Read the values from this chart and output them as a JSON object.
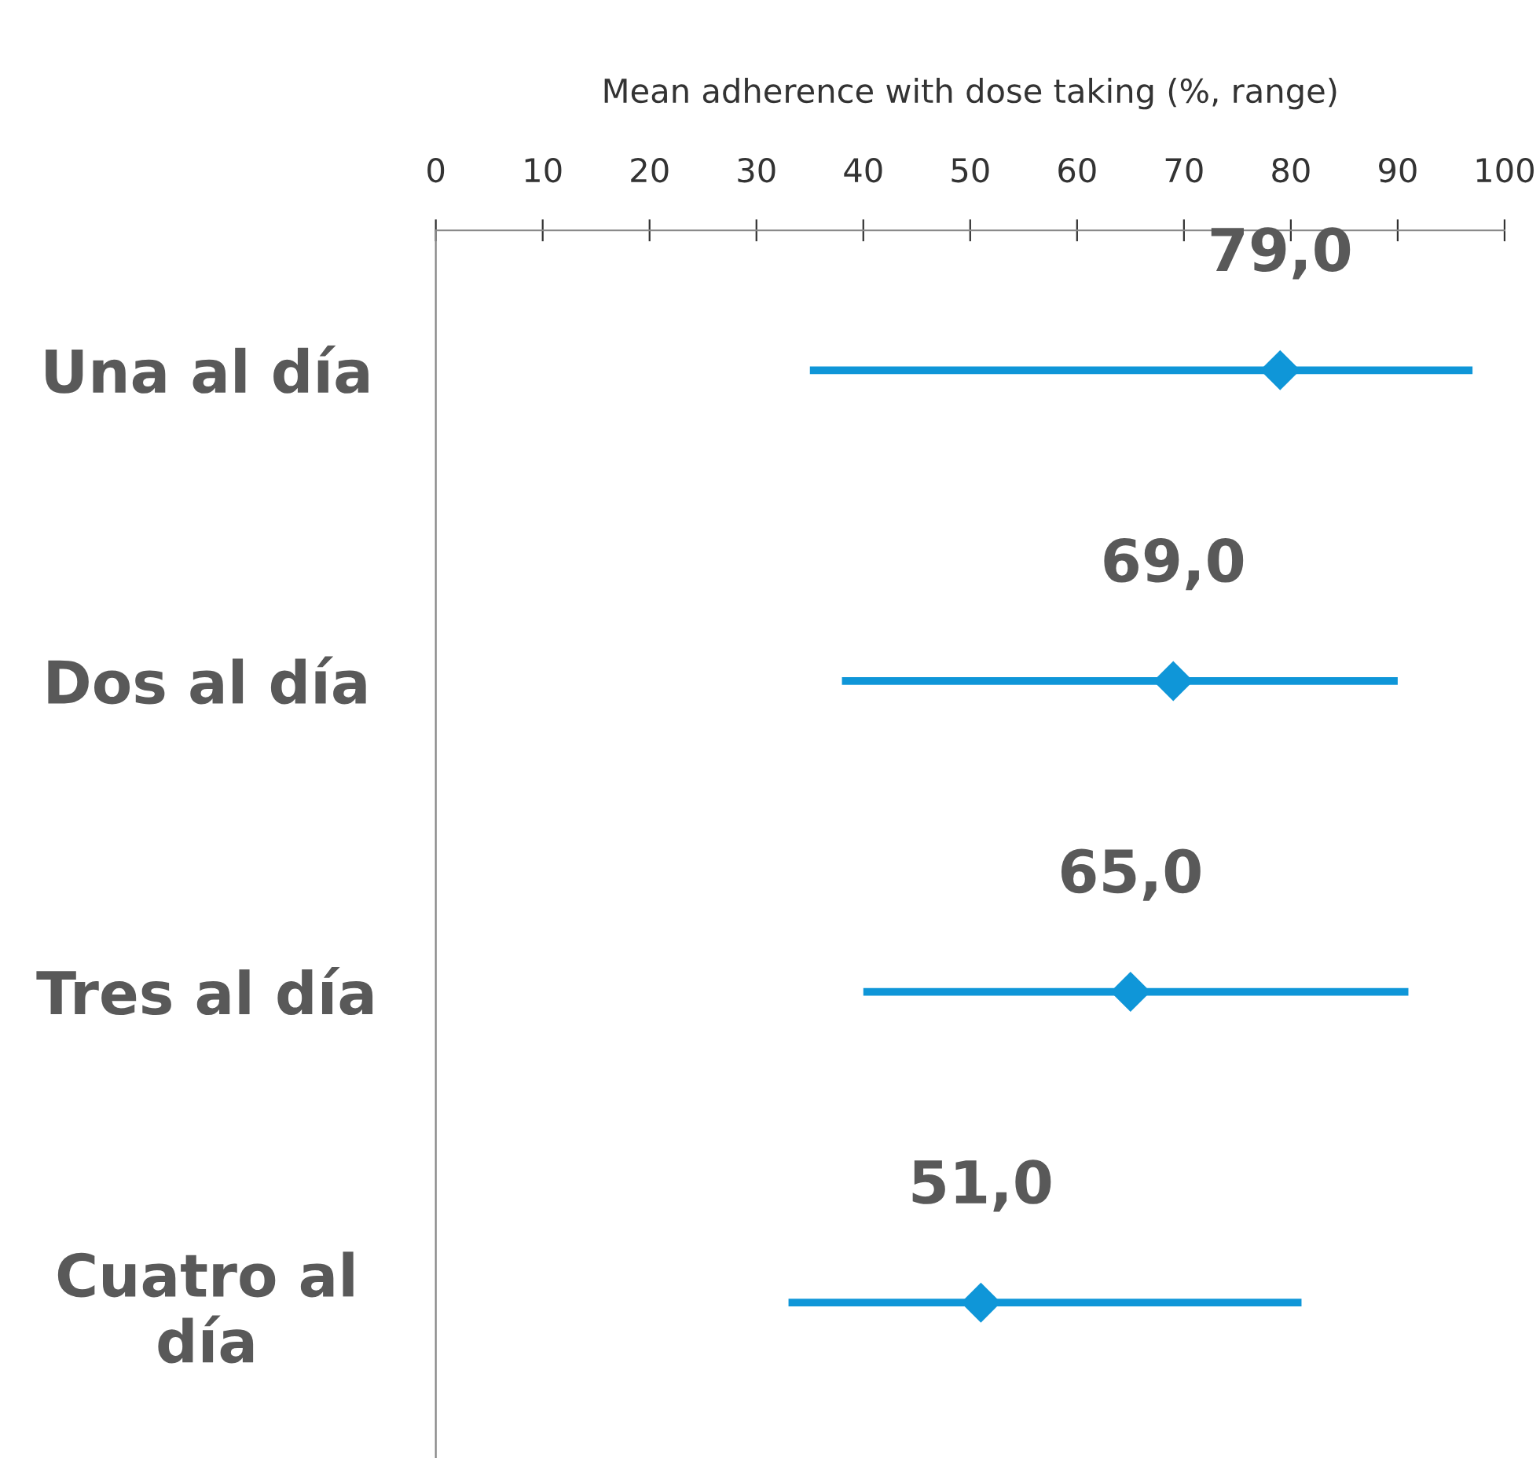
{
  "chart_data": {
    "type": "scatter",
    "orientation": "horizontal",
    "xlabel": "Mean adherence with dose taking (%, range)",
    "categories": [
      "Una al día",
      "Dos al día",
      "Tres al día",
      "Cuatro al día"
    ],
    "color": "#0f96d8",
    "values": [
      79,
      69,
      65,
      51
    ],
    "errors": [
      [
        35,
        97
      ],
      [
        38,
        90
      ],
      [
        40,
        91
      ],
      [
        33,
        81
      ]
    ],
    "value_labels": [
      "79,0",
      "69,0",
      "65,0",
      "51,0"
    ],
    "xlim": [
      0,
      100
    ],
    "xticks": [
      0,
      10,
      20,
      30,
      40,
      50,
      60,
      70,
      80,
      90,
      100
    ],
    "marker": "diamond",
    "grid": false
  }
}
